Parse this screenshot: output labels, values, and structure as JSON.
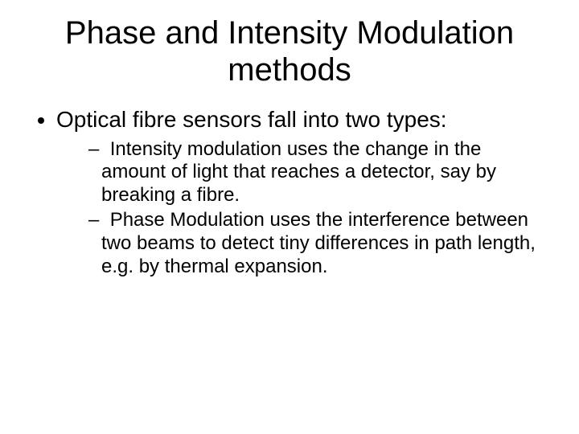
{
  "background_color": "#ffffff",
  "text_color": "#000000",
  "font_family": "Arial",
  "title": {
    "text": "Phase and Intensity Modulation methods",
    "fontsize": 40,
    "align": "center",
    "weight": 400
  },
  "bullets": {
    "level1_fontsize": 28,
    "level2_fontsize": 24,
    "level1_marker": "disc",
    "level2_marker": "en-dash",
    "items": [
      {
        "text": "Optical fibre sensors fall into two types:",
        "children": [
          {
            "text": "Intensity modulation uses the change in the amount of light that reaches a detector, say by breaking a fibre."
          },
          {
            "text": "Phase Modulation uses the interference between two beams to detect tiny differences in path length, e.g. by thermal expansion."
          }
        ]
      }
    ]
  }
}
